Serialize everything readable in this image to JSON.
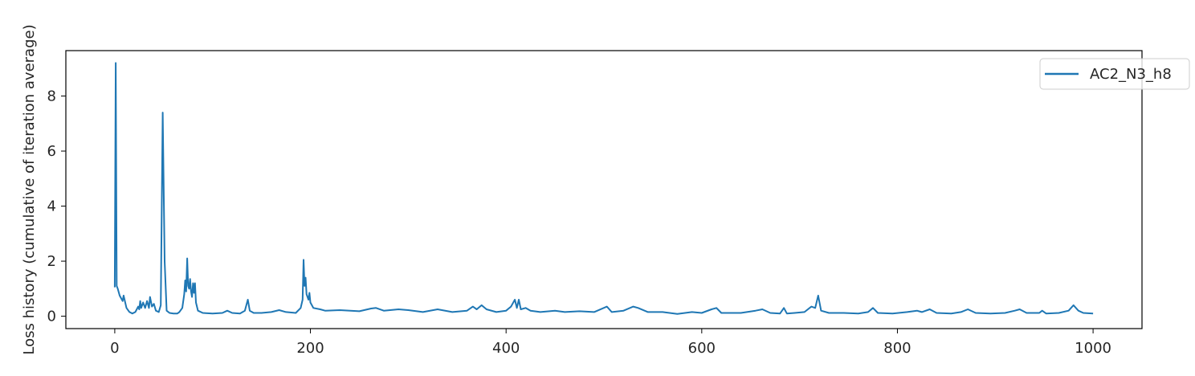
{
  "chart_data": {
    "type": "line",
    "ylabel": "Loss history (cumulative of iteration average)",
    "xlabel": "",
    "title": "",
    "xlim": [
      -50,
      1050
    ],
    "ylim": [
      -0.45,
      9.65
    ],
    "xticks": [
      0,
      200,
      400,
      600,
      800,
      1000
    ],
    "yticks": [
      0,
      2,
      4,
      6,
      8
    ],
    "legend_position": "upper-right",
    "grid": false,
    "series": [
      {
        "name": "AC2_N3_h8",
        "color": "#1f77b4",
        "points": [
          [
            0,
            1.05
          ],
          [
            1,
            9.2
          ],
          [
            2,
            1.1
          ],
          [
            3,
            1.0
          ],
          [
            5,
            0.75
          ],
          [
            8,
            0.55
          ],
          [
            9,
            0.75
          ],
          [
            12,
            0.3
          ],
          [
            15,
            0.15
          ],
          [
            18,
            0.1
          ],
          [
            21,
            0.15
          ],
          [
            24,
            0.35
          ],
          [
            25,
            0.25
          ],
          [
            26,
            0.55
          ],
          [
            27,
            0.3
          ],
          [
            29,
            0.5
          ],
          [
            31,
            0.3
          ],
          [
            33,
            0.55
          ],
          [
            35,
            0.3
          ],
          [
            36,
            0.7
          ],
          [
            38,
            0.35
          ],
          [
            40,
            0.45
          ],
          [
            42,
            0.2
          ],
          [
            45,
            0.15
          ],
          [
            47,
            0.4
          ],
          [
            49,
            7.4
          ],
          [
            51,
            2.0
          ],
          [
            53,
            0.2
          ],
          [
            56,
            0.12
          ],
          [
            60,
            0.1
          ],
          [
            64,
            0.1
          ],
          [
            66,
            0.15
          ],
          [
            69,
            0.3
          ],
          [
            71,
            0.8
          ],
          [
            72,
            1.3
          ],
          [
            73,
            0.9
          ],
          [
            74,
            2.1
          ],
          [
            75,
            1.1
          ],
          [
            76,
            1.0
          ],
          [
            77,
            1.35
          ],
          [
            78,
            0.9
          ],
          [
            79,
            0.7
          ],
          [
            80,
            1.2
          ],
          [
            81,
            0.85
          ],
          [
            82,
            1.2
          ],
          [
            83,
            0.5
          ],
          [
            85,
            0.2
          ],
          [
            90,
            0.12
          ],
          [
            100,
            0.1
          ],
          [
            110,
            0.12
          ],
          [
            115,
            0.2
          ],
          [
            120,
            0.12
          ],
          [
            128,
            0.1
          ],
          [
            133,
            0.2
          ],
          [
            136,
            0.6
          ],
          [
            138,
            0.2
          ],
          [
            142,
            0.12
          ],
          [
            150,
            0.12
          ],
          [
            160,
            0.15
          ],
          [
            168,
            0.22
          ],
          [
            175,
            0.15
          ],
          [
            185,
            0.12
          ],
          [
            190,
            0.3
          ],
          [
            192,
            0.6
          ],
          [
            193,
            2.05
          ],
          [
            194,
            1.1
          ],
          [
            195,
            1.4
          ],
          [
            196,
            0.8
          ],
          [
            198,
            0.6
          ],
          [
            199,
            0.85
          ],
          [
            200,
            0.5
          ],
          [
            203,
            0.3
          ],
          [
            210,
            0.25
          ],
          [
            215,
            0.2
          ],
          [
            230,
            0.22
          ],
          [
            250,
            0.18
          ],
          [
            262,
            0.28
          ],
          [
            267,
            0.3
          ],
          [
            275,
            0.2
          ],
          [
            290,
            0.25
          ],
          [
            300,
            0.22
          ],
          [
            315,
            0.15
          ],
          [
            330,
            0.25
          ],
          [
            345,
            0.15
          ],
          [
            360,
            0.2
          ],
          [
            366,
            0.35
          ],
          [
            370,
            0.25
          ],
          [
            375,
            0.4
          ],
          [
            380,
            0.25
          ],
          [
            390,
            0.15
          ],
          [
            400,
            0.2
          ],
          [
            405,
            0.35
          ],
          [
            409,
            0.6
          ],
          [
            411,
            0.3
          ],
          [
            413,
            0.6
          ],
          [
            415,
            0.25
          ],
          [
            420,
            0.3
          ],
          [
            425,
            0.2
          ],
          [
            435,
            0.15
          ],
          [
            450,
            0.2
          ],
          [
            460,
            0.15
          ],
          [
            475,
            0.18
          ],
          [
            490,
            0.15
          ],
          [
            503,
            0.35
          ],
          [
            508,
            0.15
          ],
          [
            520,
            0.2
          ],
          [
            530,
            0.35
          ],
          [
            535,
            0.3
          ],
          [
            545,
            0.15
          ],
          [
            560,
            0.15
          ],
          [
            575,
            0.08
          ],
          [
            590,
            0.15
          ],
          [
            600,
            0.12
          ],
          [
            610,
            0.25
          ],
          [
            615,
            0.3
          ],
          [
            620,
            0.12
          ],
          [
            640,
            0.12
          ],
          [
            655,
            0.2
          ],
          [
            662,
            0.25
          ],
          [
            670,
            0.12
          ],
          [
            680,
            0.1
          ],
          [
            684,
            0.3
          ],
          [
            687,
            0.1
          ],
          [
            695,
            0.12
          ],
          [
            705,
            0.15
          ],
          [
            712,
            0.35
          ],
          [
            716,
            0.3
          ],
          [
            719,
            0.75
          ],
          [
            722,
            0.2
          ],
          [
            730,
            0.12
          ],
          [
            745,
            0.12
          ],
          [
            760,
            0.1
          ],
          [
            770,
            0.15
          ],
          [
            775,
            0.3
          ],
          [
            780,
            0.12
          ],
          [
            795,
            0.1
          ],
          [
            810,
            0.15
          ],
          [
            820,
            0.2
          ],
          [
            825,
            0.15
          ],
          [
            833,
            0.25
          ],
          [
            840,
            0.12
          ],
          [
            855,
            0.1
          ],
          [
            865,
            0.15
          ],
          [
            872,
            0.25
          ],
          [
            880,
            0.12
          ],
          [
            895,
            0.1
          ],
          [
            910,
            0.12
          ],
          [
            920,
            0.2
          ],
          [
            925,
            0.25
          ],
          [
            932,
            0.12
          ],
          [
            945,
            0.12
          ],
          [
            948,
            0.2
          ],
          [
            952,
            0.1
          ],
          [
            965,
            0.12
          ],
          [
            975,
            0.2
          ],
          [
            980,
            0.4
          ],
          [
            985,
            0.2
          ],
          [
            990,
            0.12
          ],
          [
            1000,
            0.1
          ]
        ]
      }
    ]
  }
}
